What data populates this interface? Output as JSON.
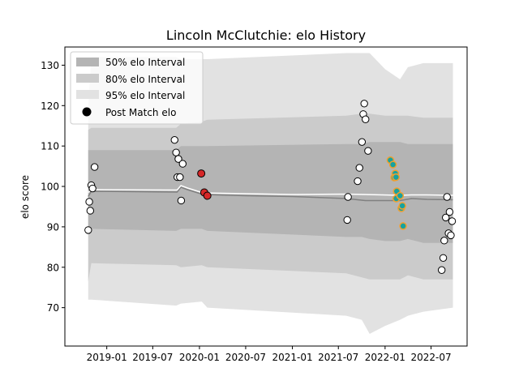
{
  "chart_data": {
    "type": "scatter",
    "title": "Lincoln McClutchie: elo History",
    "xlabel": "",
    "ylabel": "elo score",
    "xlim": [
      "2018-07-20",
      "2022-11-20"
    ],
    "ylim": [
      60.5,
      134.5
    ],
    "xticks": [
      "2019-01",
      "2019-07",
      "2020-01",
      "2020-07",
      "2021-01",
      "2021-07",
      "2022-01",
      "2022-07"
    ],
    "yticks": [
      70,
      80,
      90,
      100,
      110,
      120,
      130
    ],
    "legend": {
      "position": "top-left",
      "entries": [
        "50% elo Interval",
        "80% elo Interval",
        "95% elo Interval",
        "Post Match elo"
      ]
    },
    "colors": {
      "band50": "#b4b4b4",
      "band80": "#cbcbcb",
      "band95": "#e2e2e2",
      "median_line": "#808080",
      "mean_line": "#ffffff",
      "point_fill": "#ffffff",
      "point_edge": "#000000",
      "highlight_red": "#d62728",
      "highlight_teal": "#17a2a0",
      "highlight_orange": "#f0a030"
    },
    "bands": {
      "x": [
        "2018-10-20",
        "2018-11-01",
        "2019-10-01",
        "2019-10-20",
        "2020-01-10",
        "2020-02-01",
        "2021-08-01",
        "2021-10-01",
        "2021-11-01",
        "2022-01-01",
        "2022-03-01",
        "2022-04-01",
        "2022-06-01",
        "2022-09-25"
      ],
      "p95_upper": [
        120.0,
        132.0,
        132.0,
        131.5,
        131.5,
        131.5,
        133.0,
        133.0,
        133.0,
        129.0,
        126.5,
        129.5,
        130.5,
        130.5
      ],
      "p95_lower": [
        72.0,
        72.0,
        70.5,
        71.0,
        71.5,
        70.0,
        68.0,
        67.0,
        63.5,
        65.5,
        67.0,
        68.0,
        69.0,
        70.0
      ],
      "p80_upper": [
        114.0,
        114.5,
        114.5,
        115.5,
        116.0,
        116.5,
        117.5,
        118.0,
        118.0,
        117.5,
        117.5,
        117.5,
        117.0,
        117.0
      ],
      "p80_lower": [
        76.5,
        81.0,
        80.5,
        80.0,
        80.5,
        80.0,
        78.5,
        77.5,
        77.0,
        77.0,
        77.0,
        78.0,
        77.0,
        77.0
      ],
      "p50_upper": [
        109.0,
        109.0,
        109.0,
        110.0,
        110.0,
        110.0,
        110.5,
        110.5,
        111.0,
        111.0,
        111.0,
        110.5,
        110.5,
        110.5
      ],
      "p50_lower": [
        89.5,
        89.5,
        89.0,
        89.5,
        89.5,
        89.0,
        87.5,
        87.5,
        87.0,
        86.5,
        86.5,
        87.0,
        86.0,
        86.0
      ]
    },
    "median_line": {
      "x": [
        "2018-10-20",
        "2018-11-01",
        "2019-10-05",
        "2019-10-20",
        "2019-11-15",
        "2020-01-15",
        "2020-07-01",
        "2021-01-01",
        "2021-08-01",
        "2021-10-15",
        "2022-03-01",
        "2022-04-15",
        "2022-06-15",
        "2022-09-25"
      ],
      "y": [
        97.5,
        98.8,
        98.6,
        99.8,
        99.2,
        98.0,
        97.7,
        97.5,
        97.0,
        96.5,
        96.5,
        97.0,
        96.8,
        96.7
      ]
    },
    "mean_line": {
      "x": [
        "2018-10-20",
        "2018-11-01",
        "2019-10-05",
        "2019-10-20",
        "2019-11-15",
        "2020-01-15",
        "2020-07-01",
        "2021-01-01",
        "2021-08-01",
        "2021-10-15",
        "2022-03-01",
        "2022-04-15",
        "2022-06-15",
        "2022-09-25"
      ],
      "y": [
        98.5,
        99.2,
        99.1,
        100.2,
        99.6,
        98.4,
        98.2,
        98.0,
        98.1,
        98.0,
        97.8,
        97.9,
        97.9,
        97.8
      ]
    },
    "points": [
      {
        "x": "2018-10-20",
        "y": 89.2,
        "kind": "normal"
      },
      {
        "x": "2018-10-24",
        "y": 96.2,
        "kind": "normal"
      },
      {
        "x": "2018-10-28",
        "y": 94.0,
        "kind": "normal"
      },
      {
        "x": "2018-11-01",
        "y": 100.3,
        "kind": "normal"
      },
      {
        "x": "2018-11-06",
        "y": 99.5,
        "kind": "normal"
      },
      {
        "x": "2018-11-14",
        "y": 104.8,
        "kind": "normal"
      },
      {
        "x": "2019-09-25",
        "y": 111.5,
        "kind": "normal"
      },
      {
        "x": "2019-10-01",
        "y": 108.4,
        "kind": "normal"
      },
      {
        "x": "2019-10-06",
        "y": 102.3,
        "kind": "normal"
      },
      {
        "x": "2019-10-10",
        "y": 106.8,
        "kind": "normal"
      },
      {
        "x": "2019-10-16",
        "y": 102.3,
        "kind": "normal"
      },
      {
        "x": "2019-10-21",
        "y": 96.5,
        "kind": "normal"
      },
      {
        "x": "2019-10-27",
        "y": 105.6,
        "kind": "normal"
      },
      {
        "x": "2020-01-08",
        "y": 103.2,
        "kind": "red"
      },
      {
        "x": "2020-01-20",
        "y": 98.5,
        "kind": "red"
      },
      {
        "x": "2020-02-01",
        "y": 97.7,
        "kind": "red"
      },
      {
        "x": "2021-08-05",
        "y": 91.7,
        "kind": "normal"
      },
      {
        "x": "2021-08-08",
        "y": 97.4,
        "kind": "normal"
      },
      {
        "x": "2021-09-15",
        "y": 101.3,
        "kind": "normal"
      },
      {
        "x": "2021-09-22",
        "y": 104.6,
        "kind": "normal"
      },
      {
        "x": "2021-10-02",
        "y": 111.0,
        "kind": "normal"
      },
      {
        "x": "2021-10-07",
        "y": 117.9,
        "kind": "normal"
      },
      {
        "x": "2021-10-11",
        "y": 120.5,
        "kind": "normal"
      },
      {
        "x": "2021-10-16",
        "y": 116.6,
        "kind": "normal"
      },
      {
        "x": "2021-10-26",
        "y": 108.8,
        "kind": "normal"
      },
      {
        "x": "2022-01-22",
        "y": 106.5,
        "kind": "teal"
      },
      {
        "x": "2022-02-01",
        "y": 105.4,
        "kind": "teal"
      },
      {
        "x": "2022-02-10",
        "y": 103.2,
        "kind": "teal"
      },
      {
        "x": "2022-02-06",
        "y": 102.2,
        "kind": "teal"
      },
      {
        "x": "2022-02-13",
        "y": 102.3,
        "kind": "teal"
      },
      {
        "x": "2022-02-16",
        "y": 98.8,
        "kind": "teal"
      },
      {
        "x": "2022-02-14",
        "y": 97.0,
        "kind": "teal"
      },
      {
        "x": "2022-03-01",
        "y": 97.7,
        "kind": "teal"
      },
      {
        "x": "2022-03-06",
        "y": 94.6,
        "kind": "teal"
      },
      {
        "x": "2022-03-10",
        "y": 95.2,
        "kind": "teal"
      },
      {
        "x": "2022-03-13",
        "y": 90.2,
        "kind": "teal"
      },
      {
        "x": "2022-08-12",
        "y": 79.3,
        "kind": "normal"
      },
      {
        "x": "2022-08-18",
        "y": 82.3,
        "kind": "normal"
      },
      {
        "x": "2022-08-22",
        "y": 86.6,
        "kind": "normal"
      },
      {
        "x": "2022-08-28",
        "y": 92.3,
        "kind": "normal"
      },
      {
        "x": "2022-09-02",
        "y": 97.4,
        "kind": "normal"
      },
      {
        "x": "2022-09-08",
        "y": 88.4,
        "kind": "normal"
      },
      {
        "x": "2022-09-12",
        "y": 93.7,
        "kind": "normal"
      },
      {
        "x": "2022-09-17",
        "y": 87.9,
        "kind": "normal"
      },
      {
        "x": "2022-09-22",
        "y": 91.4,
        "kind": "normal"
      }
    ]
  }
}
